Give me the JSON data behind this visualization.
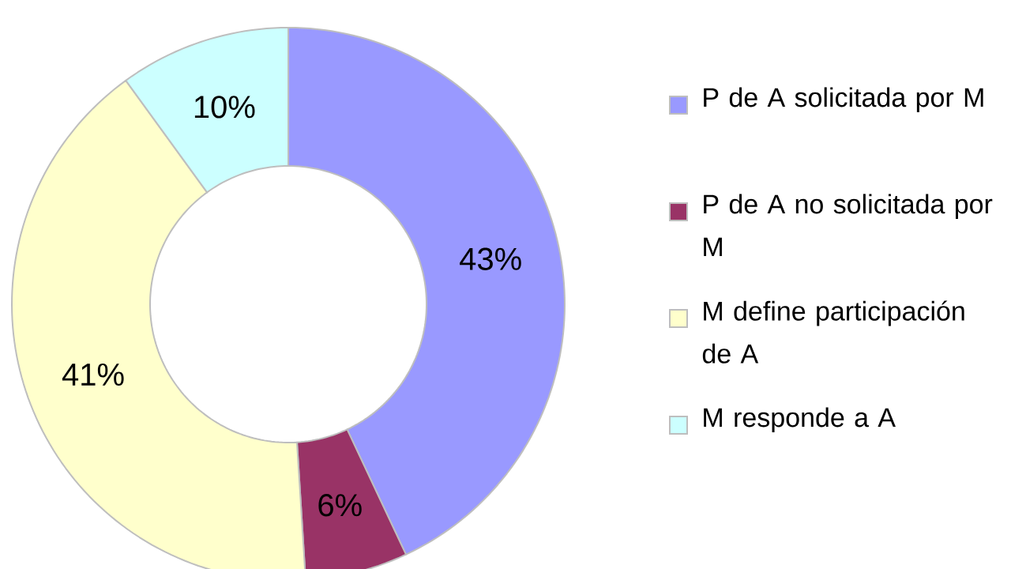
{
  "chart_data": {
    "type": "donut",
    "categories": [
      "P de A solicitada por M",
      "P de A no solicitada por M",
      "M define participación de A",
      "M responde a A"
    ],
    "values": [
      43,
      6,
      41,
      10
    ],
    "colors": [
      "#9999ff",
      "#993366",
      "#ffffcc",
      "#ccffff"
    ],
    "value_labels": [
      "43%",
      "6%",
      "41%",
      "10%"
    ],
    "legend": "right"
  }
}
